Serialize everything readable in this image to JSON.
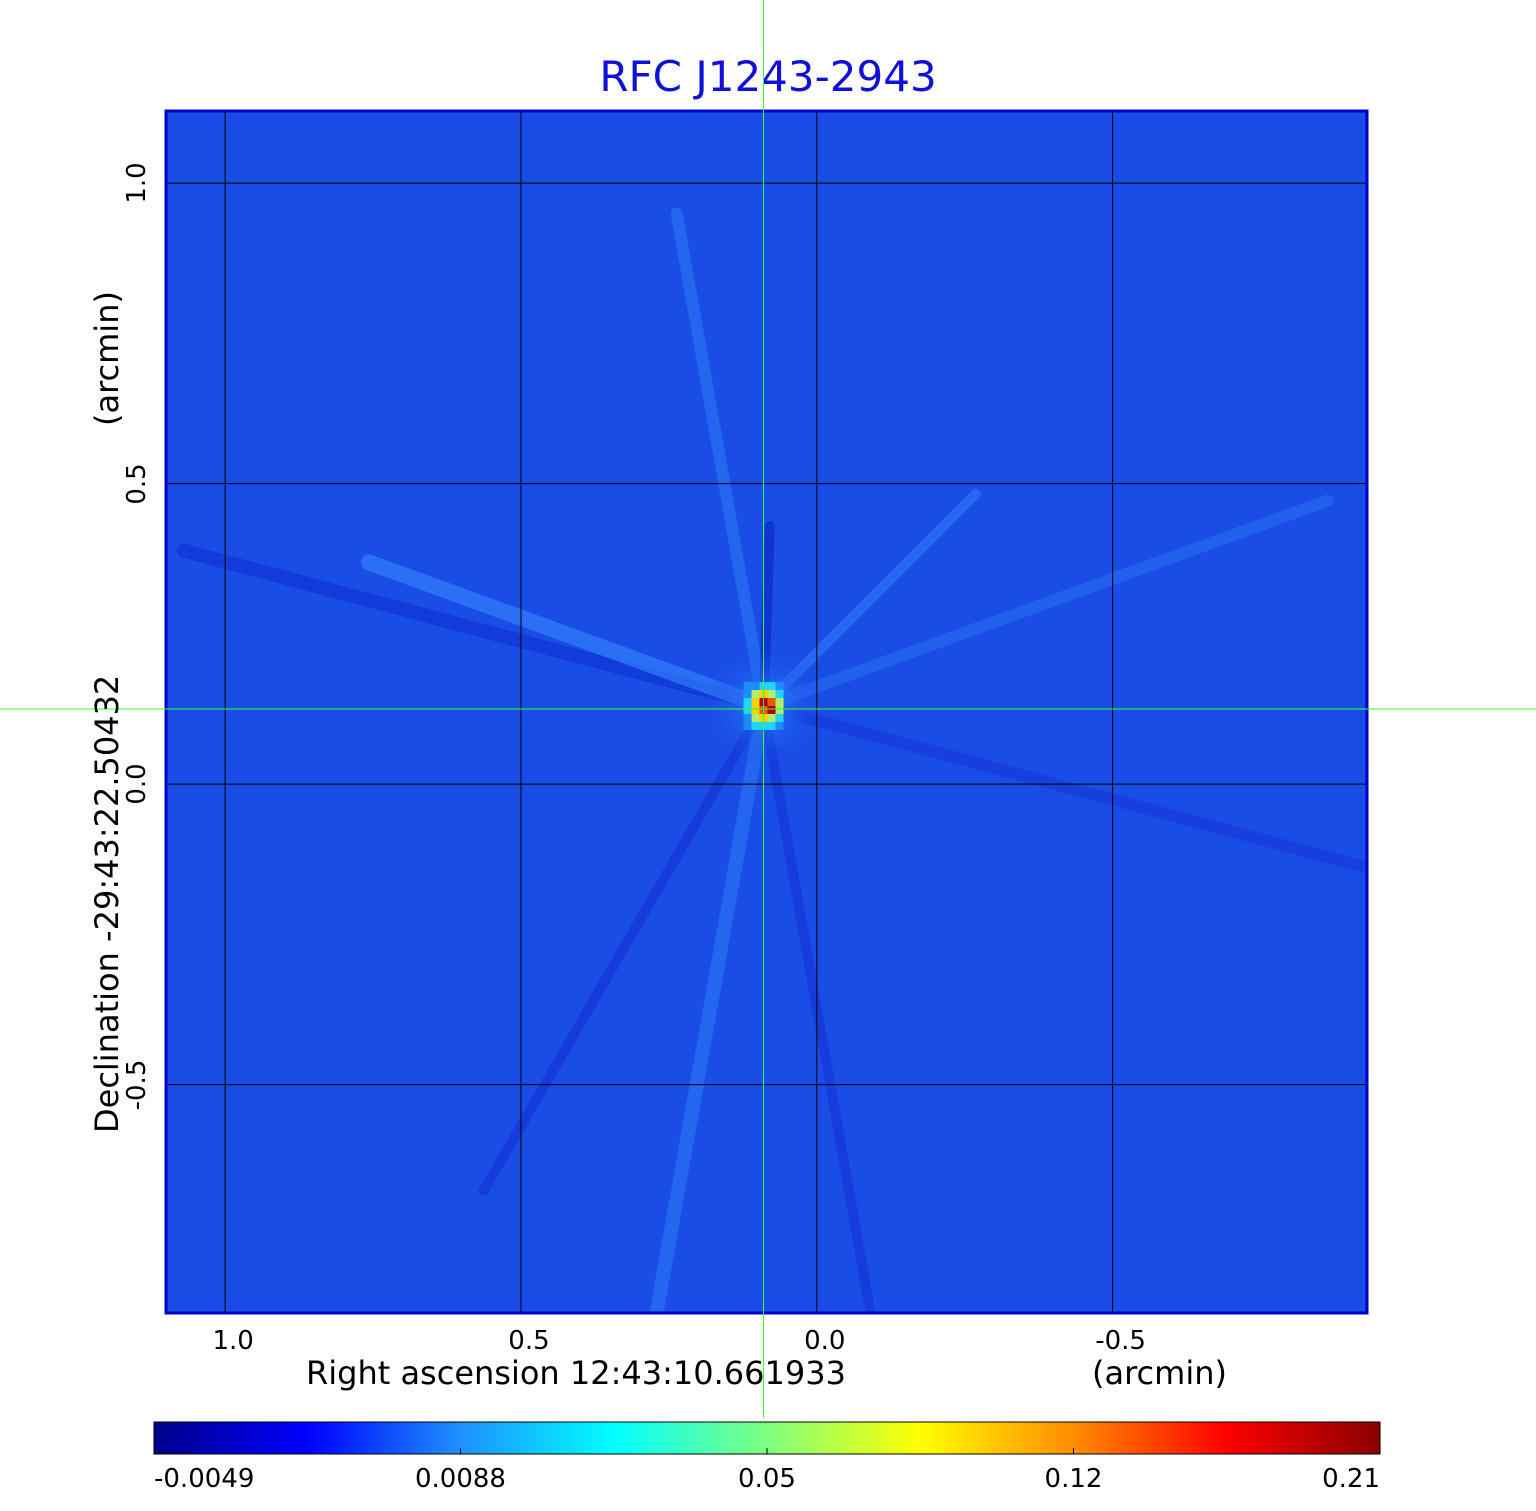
{
  "chart_data": {
    "type": "heatmap",
    "title": "RFC J1243-2943",
    "xlabel": "Right ascension  12:43:10.661933",
    "xunit": "(arcmin)",
    "ylabel_main": "Declination  -29:43:22.50432",
    "yunit": "(arcmin)",
    "x_ticks": [
      {
        "value": 1.0,
        "label": "1.0"
      },
      {
        "value": 0.5,
        "label": "0.5"
      },
      {
        "value": 0.0,
        "label": "0.0"
      },
      {
        "value": -0.5,
        "label": "-0.5"
      }
    ],
    "y_ticks": [
      {
        "value": 1.0,
        "label": "1.0"
      },
      {
        "value": 0.5,
        "label": "0.5"
      },
      {
        "value": 0.0,
        "label": "0.0"
      },
      {
        "value": -0.5,
        "label": "-0.5"
      }
    ],
    "xlim": [
      1.1,
      -0.93
    ],
    "ylim": [
      -0.88,
      1.12
    ],
    "grid": true,
    "crosshair": {
      "x": 0.09,
      "y": 0.125
    },
    "peak": {
      "x": 0.09,
      "y": 0.13,
      "value": 0.21
    },
    "colorbar": {
      "min": -0.0049,
      "max": 0.21,
      "tick_labels": [
        "-0.0049",
        "0.0088",
        "0.05",
        "0.12",
        "0.21"
      ],
      "colormap": [
        "#00008b",
        "#0000ff",
        "#1e90ff",
        "#00ffff",
        "#7fff7f",
        "#ffff00",
        "#ff8c00",
        "#ff0000",
        "#8b0000"
      ]
    },
    "colors": {
      "background": "#1a4de6",
      "frame": "#0000cd",
      "crosshair": "#33ff33",
      "title": "#1010d8"
    }
  }
}
